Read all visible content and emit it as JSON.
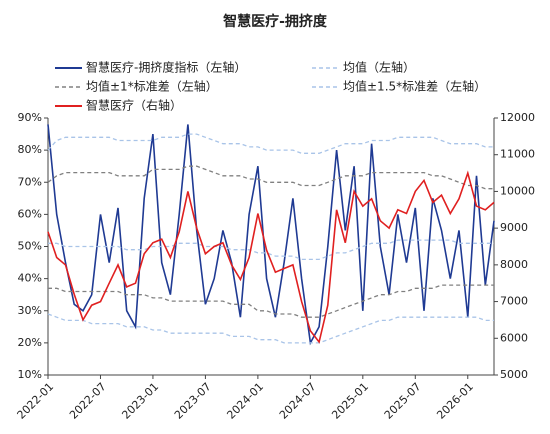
{
  "chart_data": {
    "type": "line",
    "title": "智慧医疗-拥挤度",
    "x": [
      "2022-01",
      "2022-02",
      "2022-03",
      "2022-04",
      "2022-05",
      "2022-06",
      "2022-07",
      "2022-08",
      "2022-09",
      "2022-10",
      "2022-11",
      "2022-12",
      "2023-01",
      "2023-02",
      "2023-03",
      "2023-04",
      "2023-05",
      "2023-06",
      "2023-07",
      "2023-08",
      "2023-09",
      "2023-10",
      "2023-11",
      "2023-12",
      "2024-01",
      "2024-02",
      "2024-03",
      "2024-04",
      "2024-05",
      "2024-06",
      "2024-07",
      "2024-08",
      "2024-09",
      "2024-10",
      "2024-11",
      "2024-12",
      "2025-01",
      "2025-02",
      "2025-03",
      "2025-04",
      "2025-05",
      "2025-06",
      "2025-07",
      "2025-08",
      "2025-09",
      "2025-10",
      "2025-11",
      "2025-12",
      "2026-01",
      "2026-02",
      "2026-03",
      "2026-04"
    ],
    "xlim": [
      "2022-01",
      "2026-04"
    ],
    "xticks": [
      "2022-01",
      "2022-07",
      "2023-01",
      "2023-07",
      "2024-01",
      "2024-07",
      "2025-01",
      "2025-07",
      "2026-01"
    ],
    "ylim": [
      10,
      90
    ],
    "yticks": [
      {
        "value": 10,
        "label": "10%"
      },
      {
        "value": 20,
        "label": "20%"
      },
      {
        "value": 30,
        "label": "30%"
      },
      {
        "value": 40,
        "label": "40%"
      },
      {
        "value": 50,
        "label": "50%"
      },
      {
        "value": 60,
        "label": "60%"
      },
      {
        "value": 70,
        "label": "70%"
      },
      {
        "value": 80,
        "label": "80%"
      },
      {
        "value": 90,
        "label": "90%"
      }
    ],
    "y2lim": [
      5000,
      12000
    ],
    "y2ticks": [
      5000,
      6000,
      7000,
      8000,
      9000,
      10000,
      11000,
      12000
    ],
    "series": [
      {
        "name": "智慧医疗-拥挤度指标（左轴）",
        "color": "#1f3a93",
        "dash": false,
        "values": [
          88,
          60,
          45,
          32,
          30,
          35,
          60,
          45,
          62,
          30,
          25,
          65,
          85,
          45,
          35,
          60,
          88,
          55,
          32,
          40,
          55,
          45,
          28,
          60,
          75,
          40,
          28,
          45,
          65,
          40,
          20,
          25,
          50,
          80,
          55,
          75,
          30,
          82,
          50,
          35,
          60,
          45,
          62,
          30,
          65,
          55,
          40,
          55,
          28,
          72,
          38,
          58
        ]
      },
      {
        "name": "均值（左轴）",
        "color": "#a9c4e8",
        "dash": true,
        "values": [
          51,
          51,
          50,
          50,
          50,
          50,
          50,
          50,
          50,
          49,
          49,
          49,
          50,
          50,
          50,
          51,
          51,
          51,
          50,
          50,
          50,
          49,
          49,
          49,
          48,
          48,
          47,
          47,
          47,
          46,
          46,
          46,
          47,
          48,
          48,
          49,
          50,
          51,
          51,
          51,
          52,
          52,
          52,
          52,
          52,
          52,
          52,
          51,
          51,
          51,
          51,
          51
        ]
      },
      {
        "name": "均值±1*标准差（左轴）",
        "color": "#808080",
        "dash": true,
        "upper": [
          70,
          72,
          73,
          73,
          73,
          73,
          73,
          73,
          72,
          72,
          72,
          72,
          74,
          74,
          74,
          74,
          75,
          75,
          74,
          73,
          72,
          72,
          72,
          71,
          71,
          70,
          70,
          70,
          70,
          69,
          69,
          69,
          70,
          71,
          72,
          72,
          72,
          73,
          73,
          73,
          73,
          73,
          73,
          73,
          72,
          72,
          71,
          70,
          69,
          69,
          68,
          68
        ],
        "lower": [
          37,
          37,
          36,
          36,
          36,
          36,
          36,
          36,
          36,
          35,
          35,
          35,
          34,
          34,
          33,
          33,
          33,
          33,
          33,
          33,
          33,
          32,
          32,
          32,
          30,
          30,
          29,
          29,
          29,
          28,
          28,
          28,
          29,
          30,
          31,
          32,
          33,
          34,
          35,
          35,
          36,
          36,
          37,
          37,
          37,
          38,
          38,
          38,
          38,
          38,
          38,
          38
        ]
      },
      {
        "name": "均值±1.5*标准差（左轴）",
        "color": "#a9c4e8",
        "dash": true,
        "upper": [
          80,
          83,
          84,
          84,
          84,
          84,
          84,
          84,
          83,
          83,
          83,
          83,
          83,
          84,
          84,
          84,
          85,
          85,
          84,
          83,
          82,
          82,
          82,
          81,
          81,
          80,
          80,
          80,
          80,
          79,
          79,
          79,
          80,
          81,
          82,
          82,
          82,
          83,
          83,
          83,
          84,
          84,
          84,
          84,
          84,
          83,
          82,
          82,
          82,
          82,
          81,
          81
        ],
        "lower": [
          29,
          28,
          27,
          27,
          27,
          26,
          26,
          26,
          26,
          25,
          25,
          25,
          24,
          24,
          23,
          23,
          23,
          23,
          23,
          23,
          23,
          22,
          22,
          22,
          21,
          21,
          21,
          20,
          20,
          20,
          20,
          20,
          21,
          22,
          23,
          24,
          25,
          26,
          27,
          27,
          28,
          28,
          28,
          28,
          28,
          28,
          28,
          28,
          28,
          28,
          27,
          27
        ]
      },
      {
        "name": "智慧医疗（右轴）",
        "color": "#e02020",
        "dash": false,
        "axis": "y2",
        "values": [
          8900,
          8200,
          8000,
          7200,
          6500,
          6900,
          7000,
          7500,
          8000,
          7400,
          7500,
          8300,
          8600,
          8700,
          8200,
          8900,
          10000,
          9000,
          8300,
          8500,
          8600,
          8000,
          7600,
          8200,
          9400,
          8400,
          7800,
          7900,
          8000,
          7000,
          6200,
          5900,
          6900,
          9500,
          8600,
          10000,
          9600,
          9800,
          9200,
          9000,
          9500,
          9400,
          10000,
          10300,
          9700,
          9900,
          9400,
          9800,
          10500,
          9600,
          9500,
          9700
        ]
      }
    ]
  }
}
